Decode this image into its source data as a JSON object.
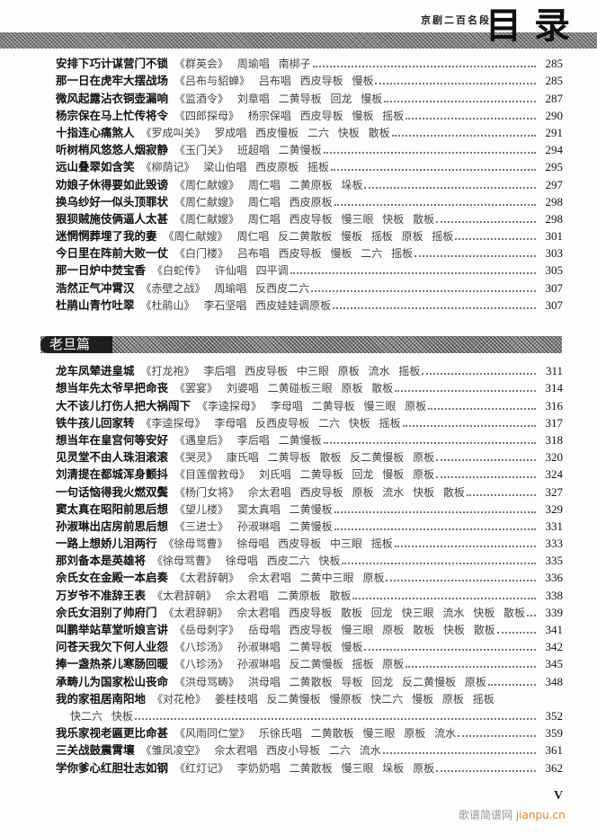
{
  "header": {
    "book_title": "京剧二百名段",
    "toc_title": "目录"
  },
  "section1": {
    "entries": [
      {
        "title": "安排下巧计谋营门不锁",
        "details": "《群英会》 周瑜唱 南梆子",
        "page": "285"
      },
      {
        "title": "那一日在虎牢大摆战场",
        "details": "《吕布与貂蝉》 吕布唱 西皮导板 慢板",
        "page": "285"
      },
      {
        "title": "微风起露沾衣铜壶漏响",
        "details": "《监酒令》 刘章唱 二黄导板 回龙 慢板",
        "page": "287"
      },
      {
        "title": "杨宗保在马上忙传将令",
        "details": "《四郎探母》 杨宗保唱 西皮导板 慢板 摇板",
        "page": "290"
      },
      {
        "title": "十指连心痛煞人",
        "details": "《罗成叫关》 罗成唱 西皮慢板 二六 快板 散板",
        "page": "291"
      },
      {
        "title": "听树梢风悠悠人烟寂静",
        "details": "《玉门关》 班超唱 二黄慢板",
        "page": "294"
      },
      {
        "title": "远山叠翠如含笑",
        "details": "《柳荫记》 梁山伯唱 西皮原板 摇板",
        "page": "295"
      },
      {
        "title": "劝娘子休得要如此毁谤",
        "details": "《周仁献嫂》 周仁唱 二黄原板 垛板",
        "page": "297"
      },
      {
        "title": "换乌纱好一似头顶罪状",
        "details": "《周仁献嫂》 周仁唱 西皮原板",
        "page": "298"
      },
      {
        "title": "狠狈贼施伎俩逼人太甚",
        "details": "《周仁献嫂》 周仁唱 西皮导板 慢三眼 快板 散板",
        "page": "298"
      },
      {
        "title": "迷惘惘葬埋了我的妻",
        "details": "《周仁献嫂》 周仁唱 反二黄散板 慢板 摇板 原板 摇板",
        "page": "301"
      },
      {
        "title": "今日里在阵前大败一仗",
        "details": "《白门楼》 吕布唱 西皮导板 慢板 二六 摇板",
        "page": "303"
      },
      {
        "title": "那一日炉中焚宝香",
        "details": "《白蛇传》 许仙唱 四平调",
        "page": "305"
      },
      {
        "title": "浩然正气冲霄汉",
        "details": "《赤壁之战》 周瑜唱 反西皮二六",
        "page": "307"
      },
      {
        "title": "杜鹃山青竹吐翠",
        "details": "《杜鹃山》 李石坚唱 西皮娃娃调原板",
        "page": "307"
      }
    ]
  },
  "section2": {
    "heading": "老旦篇",
    "entries": [
      {
        "title": "龙车凤辇进皇城",
        "details": "《打龙袍》 李后唱 西皮导板 中三眼 原板 流水 摇板",
        "page": "311"
      },
      {
        "title": "想当年先太爷早把命丧",
        "details": "《罢宴》 刘婆唱 二黄碰板三眼 原板 散板",
        "page": "314"
      },
      {
        "title": "大不该儿打伤人把大祸闯下",
        "details": "《李逵探母》 李母唱 二黄导板 慢三眼 原板",
        "page": "316"
      },
      {
        "title": "铁牛孩儿回家转",
        "details": "《李逵探母》 李母唱 反西皮导板 二六 快板 摇板",
        "page": "317"
      },
      {
        "title": "想当年在皇宫何等安好",
        "details": "《遇皇后》 李后唱 二黄慢板",
        "page": "318"
      },
      {
        "title": "见灵堂不由人珠泪滚滚",
        "details": "《哭灵》 康氏唱 二黄导板 散板 反二黄慢板 原板",
        "page": "320"
      },
      {
        "title": "刘清提在都城浑身颤抖",
        "details": "《目莲僧救母》 刘氏唱 二黄导板 回龙 慢板 原板",
        "page": "324"
      },
      {
        "title": "一句话恼得我火燃双鬓",
        "details": "《杨门女将》 佘太君唱 西皮导板 原板 流水 快板 散板",
        "page": "327"
      },
      {
        "title": "窦太真在昭阳前思后想",
        "details": "《望儿楼》 窦太真唱 二黄慢板",
        "page": "329"
      },
      {
        "title": "孙淑琳出店房前思后想",
        "details": "《三进士》 孙淑琳唱 二黄慢板",
        "page": "331"
      },
      {
        "title": "一路上想娇儿泪两行",
        "details": "《徐母骂曹》 徐母唱 西皮导板 中三眼 摇板",
        "page": "333"
      },
      {
        "title": "那刘备本是英雄将",
        "details": "《徐母骂曹》 徐母唱 西皮二六 快板",
        "page": "335"
      },
      {
        "title": "佘氏女在金殿一本启奏",
        "details": "《太君辞朝》 佘太君唱 二黄中三眼 原板",
        "page": "336"
      },
      {
        "title": "万岁爷不准辞王表",
        "details": "《太君辞朝》 佘太君唱 二黄原板 散板",
        "page": "338"
      },
      {
        "title": "佘氏女泪别了帅府门",
        "details": "《太君辞朝》 佘太君唱 西皮导板 散板 回龙 快三眼 流水 快板 散板",
        "page": "339"
      },
      {
        "title": "叫鹏举站草堂听娘言讲",
        "details": "《岳母刺字》 岳母唱 西皮导板 慢三眼 原板 散板 快板 散板",
        "page": "341"
      },
      {
        "title": "问苍天我欠下何人业怨",
        "details": "《八珍汤》 孙淑琳唱 二黄导板 慢板",
        "page": "342"
      },
      {
        "title": "捧一盏热茶儿寒肠回暖",
        "details": "《八珍汤》 孙淑琳唱 反二黄慢板 摇板 原板",
        "page": "345"
      },
      {
        "title": "承畴儿为国家松山丧命",
        "details": "《洪母骂畴》 洪母唱 二黄散板 导板 回龙 反二黄慢板 原板",
        "page": "348"
      },
      {
        "title": "我的家祖居南阳地",
        "details": "《对花枪》 姜桂枝唱 反二黄慢板 慢原板 快二六 慢板 原板 摇板",
        "details_cont": "快二六 快板",
        "page": "352"
      },
      {
        "title": "我乐家视老匾更比命甚",
        "details": "《风雨同仁堂》 乐徐氏唱 二黄散板 慢三眼 原板 流水",
        "page": "359"
      },
      {
        "title": "三关战鼓震霄壤",
        "details": "《雏凤凌空》 佘太君唱 西皮小导板 二六 流水",
        "page": "361"
      },
      {
        "title": "学你爹心红胆壮志如钢",
        "details": "《红灯记》 李奶奶唱 二黄散板 慢三眼 垛板 原板",
        "page": "362"
      }
    ]
  },
  "footer": {
    "folio": "V",
    "watermark_cn": "歌谱简谱网",
    "watermark_en": "jianpu.cn"
  }
}
